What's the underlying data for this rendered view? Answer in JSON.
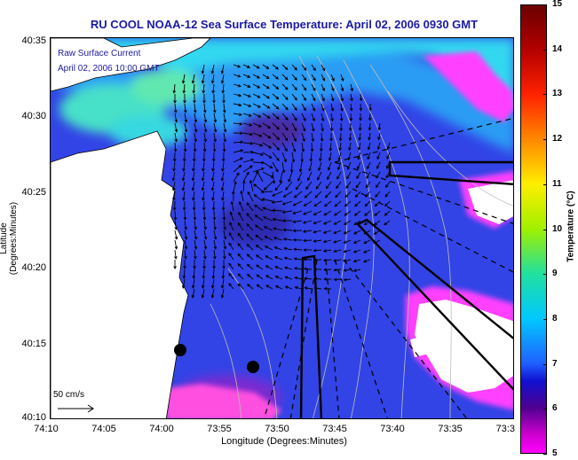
{
  "title": "RU COOL  NOAA-12  Sea Surface Temperature:  April 02, 2006 0930 GMT",
  "overlay": {
    "line1": "Raw Surface Current",
    "line2": "April 02, 2006 10:00 GMT"
  },
  "axes": {
    "ylabel": "Latitude (Degrees:Minutes)",
    "xlabel": "Longitude (Degrees:Minutes)",
    "lat_ticks": [
      "40:35",
      "40:30",
      "40:25",
      "40:20",
      "40:15",
      "40:10"
    ],
    "lon_ticks": [
      "74:10",
      "74:05",
      "74:00",
      "73:55",
      "73:50",
      "73:45",
      "73:40",
      "73:35",
      "73:3"
    ]
  },
  "scale": {
    "label": "50 cm/s"
  },
  "colorbar": {
    "title": "Temperature (°C)",
    "ticks": [
      "15",
      "14",
      "13",
      "12",
      "11",
      "10",
      "9",
      "8",
      "7",
      "6",
      "5"
    ],
    "range": [
      5,
      15
    ]
  },
  "colors": {
    "land": "#ffffff",
    "title_blue": "#1a1aa6",
    "warm_cyan": "#22d4f0",
    "cold_blue": "#2a40e0",
    "coldest_magenta": "#ff30ff"
  }
}
